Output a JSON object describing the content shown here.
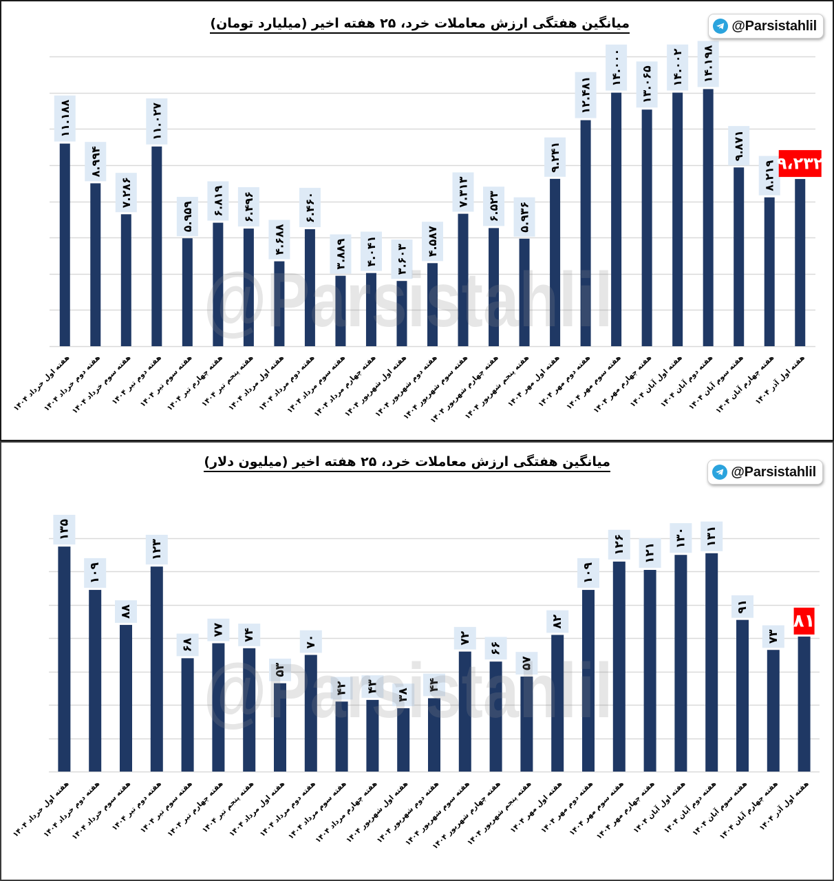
{
  "panels": [
    {
      "title": "میانگین هفتگی ارزش معاملات خرد، ۲۵ هفته اخیر (میلیارد تومان)",
      "badge_label": "@Parsistahlil",
      "watermark": "@Parsistahlil"
    },
    {
      "title": "میانگین هفتگی ارزش معاملات خرد، ۲۵ هفته اخیر (میلیون دلار)",
      "badge_label": "@Parsistahlil",
      "watermark": "@Parsistahlil"
    }
  ],
  "colors": {
    "bar": "#1f3864",
    "label_box": "#deeaf6",
    "highlight_box": "#ff0000",
    "highlight_text": "#ffffff",
    "grid": "#d9d9d9",
    "telegram": "#2aa3dd"
  },
  "chart_data": [
    {
      "type": "bar",
      "title": "میانگین هفتگی ارزش معاملات خرد، ۲۵ هفته اخیر (میلیارد تومان)",
      "unit": "میلیارد تومان",
      "xlabel": "",
      "ylabel": "",
      "ylim": [
        0,
        16
      ],
      "grid": true,
      "grid_step": 2,
      "y_tick_labels_visible": false,
      "legend": "none",
      "highlight_index": 24,
      "categories": [
        "هفته اول خرداد ۱۴۰۴",
        "هفته دوم خرداد ۱۴۰۴",
        "هفته سوم خرداد ۱۴۰۴",
        "هفته دوم تیر ۱۴۰۴",
        "هفته سوم تیر ۱۴۰۴",
        "هفته چهارم تیر ۱۴۰۴",
        "هفته پنجم تیر ۱۴۰۴",
        "هفته اول مرداد ۱۴۰۴",
        "هفته دوم مرداد ۱۴۰۴",
        "هفته سوم مرداد ۱۴۰۴",
        "هفته چهارم مرداد ۱۴۰۴",
        "هفته اول شهریور ۱۴۰۴",
        "هفته دوم شهریور ۱۴۰۴",
        "هفته سوم شهریور ۱۴۰۴",
        "هفته چهارم شهریور ۱۴۰۴",
        "هفته پنجم شهریور ۱۴۰۴",
        "هفته اول مهر ۱۴۰۴",
        "هفته دوم مهر ۱۴۰۴",
        "هفته سوم مهر ۱۴۰۴",
        "هفته چهارم مهر ۱۴۰۴",
        "هفته اول آبان ۱۴۰۴",
        "هفته دوم آبان ۱۴۰۴",
        "هفته سوم آبان ۱۴۰۴",
        "هفته چهارم آبان ۱۴۰۴",
        "هفته اول آذر ۱۴۰۴"
      ],
      "values": [
        11.188,
        8.994,
        7.286,
        11.027,
        5.959,
        6.819,
        6.496,
        4.688,
        6.46,
        3.889,
        4.041,
        3.603,
        4.587,
        7.313,
        6.523,
        5.936,
        9.241,
        12.481,
        14.0,
        13.065,
        14.002,
        14.198,
        9.871,
        8.219,
        9.232
      ],
      "value_labels": [
        "۱۱.۱۸۸",
        "۸.۹۹۴",
        "۷.۲۸۶",
        "۱۱.۰۲۷",
        "۵.۹۵۹",
        "۶.۸۱۹",
        "۶.۴۹۶",
        "۴.۶۸۸",
        "۶.۴۶۰",
        "۳.۸۸۹",
        "۴.۰۴۱",
        "۳.۶۰۳",
        "۴.۵۸۷",
        "۷.۳۱۳",
        "۶.۵۲۳",
        "۵.۹۳۶",
        "۹.۲۴۱",
        "۱۲.۴۸۱",
        "۱۴.۰۰۰",
        "۱۳.۰۶۵",
        "۱۴.۰۰۲",
        "۱۴.۱۹۸",
        "۹.۸۷۱",
        "۸.۲۱۹",
        "۹،۲۳۲"
      ]
    },
    {
      "type": "bar",
      "title": "میانگین هفتگی ارزش معاملات خرد، ۲۵ هفته اخیر (میلیون دلار)",
      "unit": "میلیون دلار",
      "xlabel": "",
      "ylabel": "",
      "ylim": [
        0,
        140
      ],
      "grid": true,
      "grid_step": 20,
      "y_tick_labels_visible": false,
      "legend": "none",
      "highlight_index": 24,
      "categories": [
        "هفته اول خرداد ۱۴۰۴",
        "هفته دوم خرداد ۱۴۰۴",
        "هفته سوم خرداد ۱۴۰۴",
        "هفته دوم تیر ۱۴۰۴",
        "هفته سوم تیر ۱۴۰۴",
        "هفته چهارم تیر ۱۴۰۴",
        "هفته پنجم تیر ۱۴۰۴",
        "هفته اول مرداد ۱۴۰۴",
        "هفته دوم مرداد ۱۴۰۴",
        "هفته سوم مرداد ۱۴۰۴",
        "هفته چهارم مرداد ۱۴۰۴",
        "هفته اول شهریور ۱۴۰۴",
        "هفته دوم شهریور ۱۴۰۴",
        "هفته سوم شهریور ۱۴۰۴",
        "هفته چهارم شهریور ۱۴۰۴",
        "هفته پنجم شهریور ۱۴۰۴",
        "هفته اول مهر ۱۴۰۴",
        "هفته دوم مهر ۱۴۰۴",
        "هفته سوم مهر ۱۴۰۴",
        "هفته چهارم مهر ۱۴۰۴",
        "هفته اول آبان ۱۴۰۴",
        "هفته دوم آبان ۱۴۰۴",
        "هفته سوم آبان ۱۴۰۴",
        "هفته چهارم آبان ۱۴۰۴",
        "هفته اول آذر ۱۴۰۴"
      ],
      "values": [
        135,
        109,
        88,
        123,
        68,
        77,
        74,
        53,
        70,
        42,
        43,
        38,
        44,
        72,
        66,
        57,
        82,
        109,
        126,
        121,
        130,
        131,
        91,
        73,
        81
      ],
      "value_labels": [
        "۱۳۵",
        "۱۰۹",
        "۸۸",
        "۱۲۳",
        "۶۸",
        "۷۷",
        "۷۴",
        "۵۳",
        "۷۰",
        "۴۲",
        "۴۳",
        "۳۸",
        "۴۴",
        "۷۲",
        "۶۶",
        "۵۷",
        "۸۲",
        "۱۰۹",
        "۱۲۶",
        "۱۲۱",
        "۱۳۰",
        "۱۳۱",
        "۹۱",
        "۷۳",
        "۸۱"
      ]
    }
  ]
}
